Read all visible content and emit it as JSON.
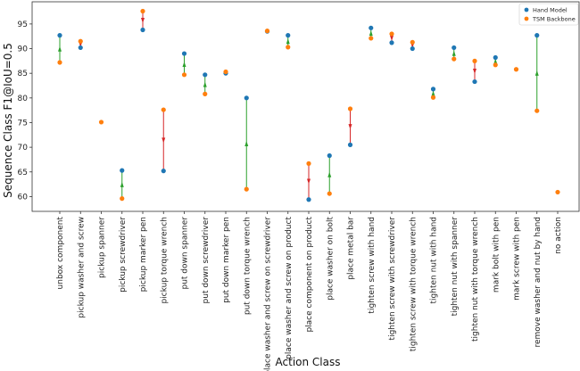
{
  "chart_data": {
    "type": "scatter",
    "title": "",
    "xlabel": "Action Class",
    "ylabel": "Sequence Class F1@IoU=0.5",
    "ylim": [
      57,
      99.5
    ],
    "yticks": [
      60,
      65,
      70,
      75,
      80,
      85,
      90,
      95
    ],
    "grid": false,
    "legend_position": "top-right",
    "categories": [
      "unbox component",
      "pickup washer and screw",
      "pickup spanner",
      "pickup screwdriver",
      "pickup marker pen",
      "pickup torque wrench",
      "put down spanner",
      "put down screwdriver",
      "put down marker pen",
      "put down torque wrench",
      "place washer and screw on screwdriver",
      "place washer and screw on product",
      "place component on product",
      "place washer on bolt",
      "place metal bar",
      "tighten screw with hand",
      "tighten screw with screwdriver",
      "tighten screw with torque wrench",
      "tighten nut with hand",
      "tighten nut with spanner",
      "tighten nut with torque wrench",
      "mark bolt with pen",
      "mark screw with pen",
      "remove washer and nut by hand",
      "no action"
    ],
    "series": [
      {
        "name": "Hand Model",
        "color": "#1f77b4",
        "values": [
          92.7,
          90.2,
          null,
          65.3,
          93.8,
          65.2,
          89.0,
          84.7,
          85.0,
          80.0,
          93.5,
          92.7,
          59.4,
          68.3,
          70.5,
          94.2,
          91.2,
          90.0,
          81.8,
          90.2,
          83.3,
          88.2,
          null,
          92.7,
          null
        ]
      },
      {
        "name": "TSM Backbone",
        "color": "#ff7f0e",
        "values": [
          87.2,
          91.5,
          75.1,
          59.6,
          97.6,
          77.6,
          84.7,
          80.8,
          85.3,
          61.5,
          93.6,
          90.3,
          66.7,
          60.6,
          77.8,
          92.1,
          93.0,
          91.3,
          80.1,
          87.9,
          87.5,
          86.7,
          85.8,
          77.4,
          60.9
        ]
      }
    ],
    "arrow_colors": {
      "improvement": "#2ca02c",
      "decline": "#d62728"
    }
  }
}
